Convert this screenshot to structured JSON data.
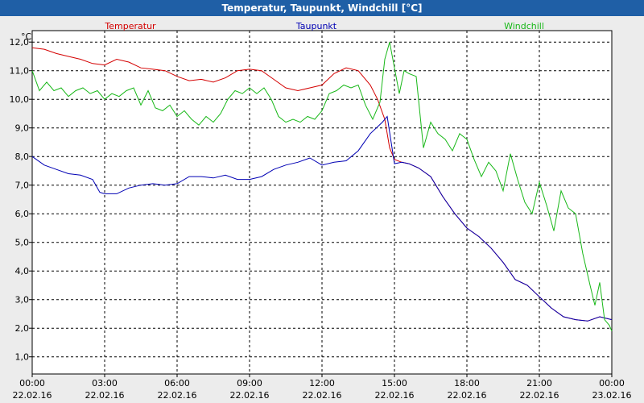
{
  "window": {
    "title": "Temperatur, Taupunkt, Windchill [°C]"
  },
  "chart_data": {
    "type": "line",
    "title": "Temperatur, Taupunkt, Windchill [°C]",
    "ylabel": "°C",
    "ylim": [
      0.4,
      12.4
    ],
    "y_ticks": [
      "12,0",
      "11,0",
      "10,0",
      "9,0",
      "8,0",
      "7,0",
      "6,0",
      "5,0",
      "4,0",
      "3,0",
      "2,0",
      "1,0"
    ],
    "y_tick_values": [
      12,
      11,
      10,
      9,
      8,
      7,
      6,
      5,
      4,
      3,
      2,
      1
    ],
    "x_ticks": [
      {
        "time": "00:00",
        "date": "22.02.16",
        "h": 0
      },
      {
        "time": "03:00",
        "date": "22.02.16",
        "h": 3
      },
      {
        "time": "06:00",
        "date": "22.02.16",
        "h": 6
      },
      {
        "time": "09:00",
        "date": "22.02.16",
        "h": 9
      },
      {
        "time": "12:00",
        "date": "22.02.16",
        "h": 12
      },
      {
        "time": "15:00",
        "date": "22.02.16",
        "h": 15
      },
      {
        "time": "18:00",
        "date": "22.02.16",
        "h": 18
      },
      {
        "time": "21:00",
        "date": "22.02.16",
        "h": 21
      },
      {
        "time": "00:00",
        "date": "23.02.16",
        "h": 24
      }
    ],
    "xlim": [
      0,
      24
    ],
    "grid": true,
    "series": [
      {
        "name": "Temperatur",
        "color": "#d40000",
        "points": [
          [
            0,
            11.8
          ],
          [
            0.5,
            11.75
          ],
          [
            1,
            11.6
          ],
          [
            1.5,
            11.5
          ],
          [
            2,
            11.4
          ],
          [
            2.5,
            11.25
          ],
          [
            3,
            11.2
          ],
          [
            3.5,
            11.4
          ],
          [
            4,
            11.3
          ],
          [
            4.5,
            11.1
          ],
          [
            5,
            11.05
          ],
          [
            5.5,
            11.0
          ],
          [
            6,
            10.8
          ],
          [
            6.5,
            10.65
          ],
          [
            7,
            10.7
          ],
          [
            7.5,
            10.6
          ],
          [
            8,
            10.75
          ],
          [
            8.5,
            11.0
          ],
          [
            9,
            11.05
          ],
          [
            9.5,
            11.0
          ],
          [
            10,
            10.7
          ],
          [
            10.5,
            10.4
          ],
          [
            11,
            10.3
          ],
          [
            11.5,
            10.4
          ],
          [
            12,
            10.5
          ],
          [
            12.5,
            10.9
          ],
          [
            13,
            11.1
          ],
          [
            13.5,
            11.0
          ],
          [
            14,
            10.5
          ],
          [
            14.3,
            10.0
          ],
          [
            14.6,
            9.3
          ],
          [
            14.8,
            8.3
          ],
          [
            15.0,
            7.9
          ],
          [
            15.3,
            7.8
          ],
          [
            15.6,
            7.75
          ],
          [
            16,
            7.6
          ],
          [
            16.5,
            7.3
          ],
          [
            17,
            6.6
          ],
          [
            17.5,
            6.0
          ],
          [
            18,
            5.5
          ],
          [
            18.5,
            5.2
          ],
          [
            19,
            4.8
          ],
          [
            19.5,
            4.3
          ],
          [
            20,
            3.7
          ],
          [
            20.5,
            3.5
          ],
          [
            21,
            3.1
          ],
          [
            21.5,
            2.7
          ],
          [
            22,
            2.4
          ],
          [
            22.5,
            2.3
          ],
          [
            23,
            2.25
          ],
          [
            23.5,
            2.4
          ],
          [
            24,
            2.3
          ]
        ]
      },
      {
        "name": "Taupunkt",
        "color": "#0000b4",
        "points": [
          [
            0,
            8.0
          ],
          [
            0.5,
            7.7
          ],
          [
            1,
            7.55
          ],
          [
            1.5,
            7.4
          ],
          [
            2,
            7.35
          ],
          [
            2.5,
            7.2
          ],
          [
            2.8,
            6.75
          ],
          [
            3,
            6.7
          ],
          [
            3.5,
            6.7
          ],
          [
            4,
            6.9
          ],
          [
            4.5,
            7.0
          ],
          [
            5,
            7.05
          ],
          [
            5.5,
            7.0
          ],
          [
            6,
            7.05
          ],
          [
            6.5,
            7.3
          ],
          [
            7,
            7.3
          ],
          [
            7.5,
            7.25
          ],
          [
            8,
            7.35
          ],
          [
            8.5,
            7.2
          ],
          [
            9,
            7.2
          ],
          [
            9.5,
            7.3
          ],
          [
            10,
            7.55
          ],
          [
            10.5,
            7.7
          ],
          [
            11,
            7.8
          ],
          [
            11.5,
            7.95
          ],
          [
            12,
            7.7
          ],
          [
            12.5,
            7.8
          ],
          [
            13,
            7.85
          ],
          [
            13.5,
            8.2
          ],
          [
            14,
            8.8
          ],
          [
            14.5,
            9.2
          ],
          [
            14.7,
            9.4
          ],
          [
            15.0,
            7.75
          ],
          [
            15.3,
            7.8
          ],
          [
            15.6,
            7.75
          ],
          [
            16,
            7.6
          ],
          [
            16.5,
            7.3
          ],
          [
            17,
            6.6
          ],
          [
            17.5,
            6.0
          ],
          [
            18,
            5.5
          ],
          [
            18.5,
            5.2
          ],
          [
            19,
            4.8
          ],
          [
            19.5,
            4.3
          ],
          [
            20,
            3.7
          ],
          [
            20.5,
            3.5
          ],
          [
            21,
            3.1
          ],
          [
            21.5,
            2.7
          ],
          [
            22,
            2.4
          ],
          [
            22.5,
            2.3
          ],
          [
            23,
            2.25
          ],
          [
            23.5,
            2.4
          ],
          [
            24,
            2.3
          ]
        ]
      },
      {
        "name": "Windchill",
        "color": "#18b818",
        "points": [
          [
            0,
            11.0
          ],
          [
            0.3,
            10.3
          ],
          [
            0.6,
            10.6
          ],
          [
            0.9,
            10.3
          ],
          [
            1.2,
            10.4
          ],
          [
            1.5,
            10.1
          ],
          [
            1.8,
            10.3
          ],
          [
            2.1,
            10.4
          ],
          [
            2.4,
            10.2
          ],
          [
            2.7,
            10.3
          ],
          [
            3.0,
            10.0
          ],
          [
            3.3,
            10.2
          ],
          [
            3.6,
            10.1
          ],
          [
            3.9,
            10.3
          ],
          [
            4.2,
            10.4
          ],
          [
            4.5,
            9.8
          ],
          [
            4.8,
            10.3
          ],
          [
            5.1,
            9.7
          ],
          [
            5.4,
            9.6
          ],
          [
            5.7,
            9.8
          ],
          [
            6.0,
            9.4
          ],
          [
            6.3,
            9.6
          ],
          [
            6.6,
            9.3
          ],
          [
            6.9,
            9.1
          ],
          [
            7.2,
            9.4
          ],
          [
            7.5,
            9.2
          ],
          [
            7.8,
            9.5
          ],
          [
            8.1,
            10.0
          ],
          [
            8.4,
            10.3
          ],
          [
            8.7,
            10.2
          ],
          [
            9.0,
            10.4
          ],
          [
            9.3,
            10.2
          ],
          [
            9.6,
            10.4
          ],
          [
            9.9,
            10.0
          ],
          [
            10.2,
            9.4
          ],
          [
            10.5,
            9.2
          ],
          [
            10.8,
            9.3
          ],
          [
            11.1,
            9.2
          ],
          [
            11.4,
            9.4
          ],
          [
            11.7,
            9.3
          ],
          [
            12.0,
            9.6
          ],
          [
            12.3,
            10.2
          ],
          [
            12.6,
            10.3
          ],
          [
            12.9,
            10.5
          ],
          [
            13.2,
            10.4
          ],
          [
            13.5,
            10.5
          ],
          [
            13.8,
            9.8
          ],
          [
            14.1,
            9.3
          ],
          [
            14.4,
            9.9
          ],
          [
            14.6,
            11.4
          ],
          [
            14.8,
            12.0
          ],
          [
            15.0,
            11.1
          ],
          [
            15.2,
            10.2
          ],
          [
            15.4,
            11.0
          ],
          [
            15.6,
            10.9
          ],
          [
            15.9,
            10.8
          ],
          [
            16.2,
            8.3
          ],
          [
            16.5,
            9.2
          ],
          [
            16.8,
            8.8
          ],
          [
            17.1,
            8.6
          ],
          [
            17.4,
            8.2
          ],
          [
            17.7,
            8.8
          ],
          [
            18.0,
            8.6
          ],
          [
            18.3,
            7.9
          ],
          [
            18.6,
            7.3
          ],
          [
            18.9,
            7.8
          ],
          [
            19.2,
            7.5
          ],
          [
            19.5,
            6.8
          ],
          [
            19.8,
            8.1
          ],
          [
            20.1,
            7.2
          ],
          [
            20.4,
            6.4
          ],
          [
            20.7,
            6.0
          ],
          [
            21.0,
            7.1
          ],
          [
            21.3,
            6.3
          ],
          [
            21.6,
            5.4
          ],
          [
            21.9,
            6.8
          ],
          [
            22.2,
            6.2
          ],
          [
            22.5,
            6.0
          ],
          [
            22.8,
            4.6
          ],
          [
            23.1,
            3.5
          ],
          [
            23.3,
            2.8
          ],
          [
            23.5,
            3.6
          ],
          [
            23.7,
            2.3
          ],
          [
            23.9,
            2.1
          ],
          [
            24,
            1.9
          ]
        ]
      }
    ],
    "legend": "top"
  }
}
